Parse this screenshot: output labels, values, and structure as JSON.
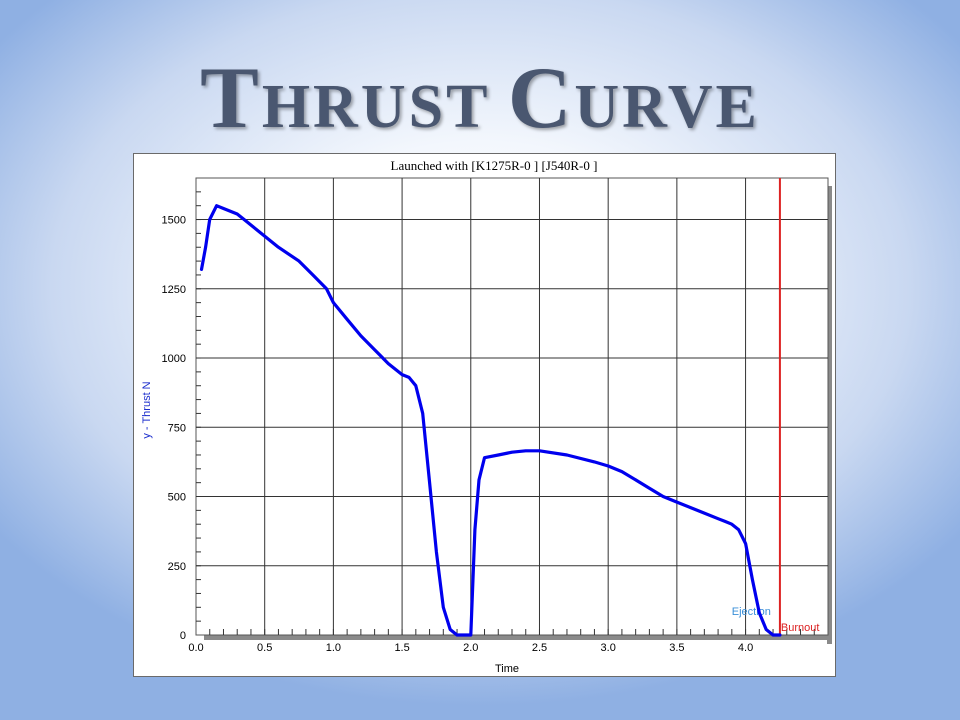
{
  "slide": {
    "title": "Thrust Curve"
  },
  "chart_data": {
    "type": "line",
    "title": "Launched with [K1275R-0   ] [J540R-0   ]",
    "xlabel": "Time",
    "ylabel": "y - Thrust N",
    "xlim": [
      0.0,
      4.6
    ],
    "ylim": [
      0,
      1650
    ],
    "x_ticks": [
      0.0,
      0.5,
      1.0,
      1.5,
      2.0,
      2.5,
      3.0,
      3.5,
      4.0
    ],
    "x_tick_labels": [
      "0.0",
      "0.5",
      "1.0",
      "1.5",
      "2.0",
      "2.5",
      "3.0",
      "3.5",
      "4.0"
    ],
    "y_ticks": [
      0,
      250,
      500,
      750,
      1000,
      1250,
      1500
    ],
    "y_tick_labels": [
      "0",
      "250",
      "500",
      "750",
      "1000",
      "1250",
      "1500"
    ],
    "grid": true,
    "series": [
      {
        "color": "#0000ee",
        "x": [
          0.04,
          0.07,
          0.1,
          0.15,
          0.2,
          0.3,
          0.35,
          0.45,
          0.6,
          0.75,
          0.85,
          0.95,
          1.0,
          1.1,
          1.2,
          1.3,
          1.4,
          1.5,
          1.55,
          1.6,
          1.65,
          1.7,
          1.75,
          1.8,
          1.85,
          1.9,
          1.95,
          1.97,
          2.0,
          2.03,
          2.06,
          2.1,
          2.2,
          2.3,
          2.4,
          2.5,
          2.7,
          2.9,
          3.0,
          3.1,
          3.2,
          3.3,
          3.4,
          3.5,
          3.6,
          3.7,
          3.8,
          3.85,
          3.9,
          3.95,
          4.0,
          4.05,
          4.1,
          4.15,
          4.2,
          4.25
        ],
        "y": [
          1320,
          1400,
          1500,
          1550,
          1540,
          1520,
          1500,
          1460,
          1400,
          1350,
          1300,
          1250,
          1200,
          1140,
          1080,
          1030,
          980,
          940,
          930,
          900,
          800,
          550,
          300,
          100,
          20,
          0,
          0,
          0,
          0,
          380,
          560,
          640,
          650,
          660,
          665,
          665,
          650,
          625,
          610,
          590,
          560,
          530,
          500,
          480,
          460,
          440,
          420,
          410,
          400,
          380,
          330,
          200,
          80,
          20,
          0,
          0
        ]
      }
    ],
    "markers": [
      {
        "label": "Ejection",
        "x": 4.22,
        "color": "#3a8fd8"
      },
      {
        "label": "Burnout",
        "x": 4.25,
        "color": "#dd2222"
      }
    ]
  }
}
